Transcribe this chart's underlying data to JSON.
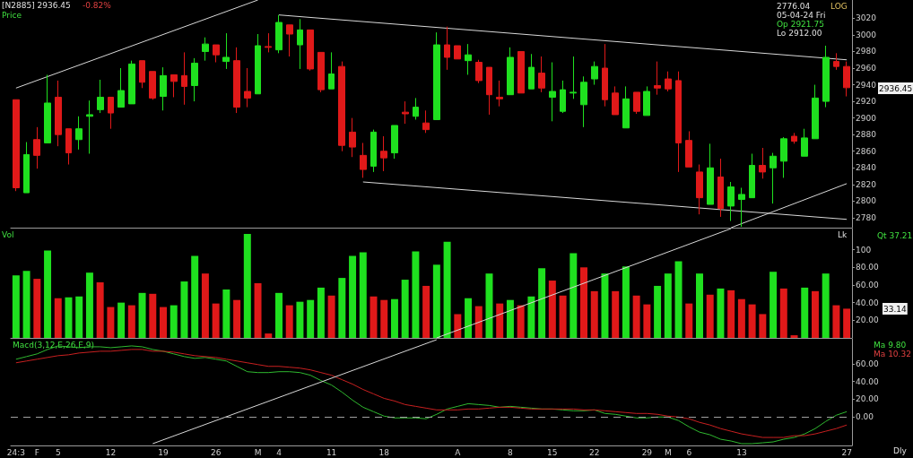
{
  "chart_data": [
    {
      "type": "candlestick",
      "title": "[N2885] 2936.45",
      "subtitle": "-0.82%",
      "categories": [
        null,
        null,
        null,
        null,
        null,
        null,
        null,
        null,
        null,
        null,
        null,
        null,
        null,
        null,
        null,
        null,
        null,
        null,
        null,
        null,
        null,
        null,
        null,
        null,
        null,
        null,
        null,
        null,
        null,
        null,
        null,
        null,
        null,
        null,
        null,
        null,
        null,
        null,
        null,
        null,
        null,
        null,
        null,
        null,
        null,
        null,
        null,
        null,
        null,
        null,
        null,
        null,
        null,
        null,
        null,
        null,
        null,
        null,
        null,
        null,
        null,
        null,
        null,
        null,
        null,
        null,
        null,
        null,
        null,
        null,
        null,
        null,
        null,
        null,
        null,
        null,
        null,
        null,
        null,
        null
      ],
      "ohlc": [
        [
          2922,
          2922,
          2812,
          2816
        ],
        [
          2810,
          2871,
          2810,
          2856
        ],
        [
          2874,
          2889,
          2839,
          2855
        ],
        [
          2870,
          2952,
          2870,
          2918
        ],
        [
          2925,
          2945,
          2866,
          2880
        ],
        [
          2887,
          2887,
          2844,
          2858
        ],
        [
          2874,
          2902,
          2862,
          2887
        ],
        [
          2902,
          2921,
          2857,
          2904
        ],
        [
          2910,
          2946,
          2906,
          2925
        ],
        [
          2925,
          2925,
          2887,
          2906
        ],
        [
          2913,
          2960,
          2913,
          2933
        ],
        [
          2917,
          2969,
          2917,
          2965
        ],
        [
          2969,
          2969,
          2936,
          2943
        ],
        [
          2956,
          2956,
          2922,
          2924
        ],
        [
          2926,
          2961,
          2909,
          2951
        ],
        [
          2952,
          2952,
          2925,
          2944
        ],
        [
          2951,
          2979,
          2916,
          2938
        ],
        [
          2939,
          2972,
          2920,
          2966
        ],
        [
          2980,
          2997,
          2969,
          2989
        ],
        [
          2988,
          2988,
          2967,
          2976
        ],
        [
          2968,
          3002,
          2959,
          2973
        ],
        [
          2969,
          2985,
          2906,
          2913
        ],
        [
          2932,
          2960,
          2913,
          2924
        ],
        [
          2929,
          3001,
          2929,
          2987
        ],
        [
          2986,
          3002,
          2979,
          2985
        ],
        [
          2982,
          3024,
          2978,
          3015
        ],
        [
          3012,
          3012,
          2974,
          3001
        ],
        [
          2988,
          3019,
          2959,
          3006
        ],
        [
          3006,
          3006,
          2957,
          2959
        ],
        [
          2979,
          2979,
          2931,
          2934
        ],
        [
          2935,
          2979,
          2935,
          2953
        ],
        [
          2962,
          2968,
          2860,
          2867
        ],
        [
          2883,
          2900,
          2853,
          2865
        ],
        [
          2855,
          2870,
          2828,
          2838
        ],
        [
          2842,
          2886,
          2835,
          2883
        ],
        [
          2860,
          2878,
          2836,
          2852
        ],
        [
          2858,
          2891,
          2851,
          2891
        ],
        [
          2907,
          2920,
          2893,
          2905
        ],
        [
          2902,
          2924,
          2898,
          2913
        ],
        [
          2894,
          2909,
          2882,
          2886
        ],
        [
          2898,
          3003,
          2898,
          2988
        ],
        [
          2988,
          3010,
          2958,
          2973
        ],
        [
          2987,
          2987,
          2971,
          2971
        ],
        [
          2969,
          2989,
          2952,
          2976
        ],
        [
          2967,
          2970,
          2942,
          2945
        ],
        [
          2961,
          2961,
          2904,
          2928
        ],
        [
          2925,
          2945,
          2914,
          2923
        ],
        [
          2928,
          2985,
          2928,
          2973
        ],
        [
          2980,
          2980,
          2930,
          2930
        ],
        [
          2935,
          2977,
          2935,
          2961
        ],
        [
          2954,
          2974,
          2931,
          2936
        ],
        [
          2925,
          2967,
          2896,
          2932
        ],
        [
          2908,
          2945,
          2906,
          2934
        ],
        [
          2930,
          2974,
          2923,
          2931
        ],
        [
          2916,
          2950,
          2889,
          2943
        ],
        [
          2947,
          2968,
          2940,
          2962
        ],
        [
          2960,
          2989,
          2914,
          2922
        ],
        [
          2930,
          2938,
          2904,
          2904
        ],
        [
          2888,
          2938,
          2888,
          2923
        ],
        [
          2931,
          2931,
          2905,
          2908
        ],
        [
          2903,
          2938,
          2903,
          2932
        ],
        [
          2939,
          2968,
          2928,
          2936
        ],
        [
          2947,
          2956,
          2932,
          2935
        ],
        [
          2945,
          2956,
          2835,
          2870
        ],
        [
          2873,
          2884,
          2841,
          2841
        ],
        [
          2835,
          2844,
          2784,
          2804
        ],
        [
          2796,
          2869,
          2796,
          2840
        ],
        [
          2829,
          2851,
          2781,
          2791
        ],
        [
          2794,
          2823,
          2776,
          2817
        ],
        [
          2802,
          2816,
          2769,
          2808
        ],
        [
          2804,
          2857,
          2804,
          2843
        ],
        [
          2843,
          2864,
          2827,
          2835
        ],
        [
          2840,
          2858,
          2797,
          2854
        ],
        [
          2848,
          2877,
          2828,
          2875
        ],
        [
          2878,
          2882,
          2869,
          2872
        ],
        [
          2854,
          2887,
          2854,
          2876
        ],
        [
          2875,
          2940,
          2875,
          2924
        ],
        [
          2920,
          2987,
          2913,
          2973
        ],
        [
          2968,
          2978,
          2958,
          2962
        ],
        [
          2962,
          2968,
          2926,
          2936.45
        ]
      ],
      "colors": [
        "#e01919",
        "#1fe01f",
        "#e01919",
        "#1fe01f",
        "#e01919",
        "#e01919",
        "#1fe01f",
        "#1fe01f",
        "#1fe01f",
        "#e01919",
        "#1fe01f",
        "#1fe01f",
        "#e01919",
        "#e01919",
        "#1fe01f",
        "#e01919",
        "#e01919",
        "#1fe01f",
        "#1fe01f",
        "#e01919",
        "#1fe01f",
        "#e01919",
        "#e01919",
        "#1fe01f",
        "#e01919",
        "#1fe01f",
        "#e01919",
        "#1fe01f",
        "#e01919",
        "#e01919",
        "#1fe01f",
        "#e01919",
        "#e01919",
        "#e01919",
        "#1fe01f",
        "#e01919",
        "#1fe01f",
        "#e01919",
        "#1fe01f",
        "#e01919",
        "#1fe01f",
        "#e01919",
        "#e01919",
        "#1fe01f",
        "#e01919",
        "#e01919",
        "#e01919",
        "#1fe01f",
        "#e01919",
        "#1fe01f",
        "#e01919",
        "#1fe01f",
        "#1fe01f",
        "#1fe01f",
        "#1fe01f",
        "#1fe01f",
        "#e01919",
        "#e01919",
        "#1fe01f",
        "#e01919",
        "#1fe01f",
        "#e01919",
        "#e01919",
        "#e01919",
        "#e01919",
        "#e01919",
        "#1fe01f",
        "#e01919",
        "#1fe01f",
        "#1fe01f",
        "#1fe01f",
        "#e01919",
        "#1fe01f",
        "#1fe01f",
        "#e01919",
        "#1fe01f",
        "#1fe01f",
        "#1fe01f",
        "#e01919",
        "#e01919"
      ],
      "series": [
        {
          "type": "line",
          "color": "#d8d8d8",
          "values": [
            2936,
            null,
            null,
            null,
            null,
            null,
            null,
            null,
            null,
            null,
            null,
            null,
            null,
            null,
            null,
            null,
            null,
            null,
            null,
            null,
            null,
            null,
            null,
            3042,
            null,
            null,
            null,
            null,
            null,
            null,
            null,
            null,
            null,
            null,
            null,
            null,
            null,
            null,
            null,
            null,
            null,
            null,
            null,
            null,
            null,
            null,
            null,
            null,
            null,
            null,
            null,
            null,
            null,
            null,
            null,
            null,
            null,
            null,
            null,
            null,
            null,
            null,
            null,
            null,
            null,
            null,
            null,
            null,
            null,
            null,
            null,
            null,
            null,
            null,
            null,
            null,
            null,
            null,
            null,
            null
          ]
        },
        {
          "type": "line",
          "color": "#d8d8d8",
          "values": [
            null,
            null,
            null,
            null,
            null,
            null,
            null,
            null,
            null,
            null,
            null,
            null,
            null,
            null,
            null,
            null,
            null,
            null,
            null,
            null,
            null,
            null,
            null,
            null,
            null,
            3024,
            null,
            null,
            null,
            null,
            null,
            null,
            null,
            null,
            null,
            null,
            null,
            null,
            null,
            null,
            null,
            null,
            null,
            null,
            null,
            null,
            null,
            null,
            null,
            null,
            null,
            null,
            null,
            null,
            null,
            null,
            null,
            null,
            null,
            null,
            null,
            null,
            null,
            null,
            null,
            null,
            null,
            null,
            null,
            null,
            null,
            null,
            null,
            null,
            null,
            null,
            null,
            null,
            null,
            2970
          ]
        },
        {
          "type": "line",
          "color": "#d8d8d8",
          "values": [
            null,
            null,
            null,
            null,
            null,
            null,
            null,
            null,
            null,
            null,
            null,
            null,
            null,
            null,
            null,
            null,
            null,
            null,
            null,
            null,
            null,
            null,
            null,
            null,
            null,
            null,
            null,
            null,
            null,
            null,
            null,
            null,
            null,
            2823,
            null,
            null,
            null,
            null,
            null,
            null,
            null,
            null,
            null,
            null,
            null,
            null,
            null,
            null,
            null,
            null,
            null,
            null,
            null,
            null,
            null,
            null,
            null,
            null,
            null,
            null,
            null,
            null,
            null,
            null,
            null,
            null,
            null,
            null,
            null,
            null,
            null,
            null,
            null,
            null,
            null,
            null,
            null,
            null,
            null,
            2778
          ]
        },
        {
          "type": "line",
          "color": "#d8d8d8",
          "values": [
            null,
            null,
            null,
            null,
            null,
            null,
            null,
            null,
            null,
            null,
            null,
            null,
            null,
            null,
            null,
            null,
            null,
            null,
            null,
            null,
            null,
            null,
            null,
            null,
            null,
            null,
            null,
            null,
            null,
            null,
            null,
            null,
            null,
            null,
            null,
            null,
            null,
            null,
            null,
            null,
            null,
            null,
            null,
            null,
            null,
            null,
            null,
            null,
            null,
            null,
            null,
            null,
            null,
            null,
            null,
            null,
            null,
            null,
            null,
            null,
            null,
            null,
            null,
            null,
            null,
            null,
            null,
            null,
            2768,
            null,
            null,
            null,
            null,
            null,
            null,
            null,
            null,
            null,
            null,
            2821
          ]
        }
      ],
      "ylim": [
        2768,
        3042
      ],
      "yticks": [
        2780,
        2800,
        2820,
        2840,
        2860,
        2880,
        2900,
        2920,
        2940,
        2960,
        2980,
        3000,
        3020
      ],
      "tick_labels": "y",
      "annotations": [
        "Price",
        "LOG",
        "2776.04",
        "05-04-24 Fri",
        "Op 2921.75",
        "Lo 2912.00",
        "2936.45"
      ]
    },
    {
      "type": "bar",
      "categories": [
        null,
        null,
        null,
        null,
        null,
        null,
        null,
        null,
        null,
        null,
        null,
        null,
        null,
        null,
        null,
        null,
        null,
        null,
        null,
        null,
        null,
        null,
        null,
        null,
        null,
        null,
        null,
        null,
        null,
        null,
        null,
        null,
        null,
        null,
        null,
        null,
        null,
        null,
        null,
        null,
        null,
        null,
        null,
        null,
        null,
        null,
        null,
        null,
        null,
        null,
        null,
        null,
        null,
        null,
        null,
        null,
        null,
        null,
        null,
        null,
        null,
        null,
        null,
        null,
        null,
        null,
        null,
        null,
        null,
        null,
        null,
        null,
        null,
        null,
        null,
        null,
        null,
        null,
        null,
        null
      ],
      "values": [
        71,
        76,
        67,
        99,
        45,
        46,
        47,
        74,
        63,
        35,
        40,
        37,
        51,
        50,
        35,
        37,
        64,
        93,
        73,
        39,
        55,
        43,
        118,
        62,
        5,
        51,
        37,
        41,
        43,
        57,
        48,
        68,
        93,
        97,
        47,
        43,
        44,
        66,
        98,
        59,
        83,
        109,
        27,
        45,
        36,
        73,
        39,
        43,
        37,
        47,
        79,
        65,
        48,
        96,
        80,
        53,
        73,
        53,
        81,
        48,
        38,
        59,
        73,
        87,
        39,
        73,
        49,
        56,
        54,
        44,
        38,
        27,
        75,
        56,
        3,
        57,
        53,
        73,
        37,
        33.14
      ],
      "colors": [
        "#1fe01f",
        "#1fe01f",
        "#e01919",
        "#1fe01f",
        "#e01919",
        "#1fe01f",
        "#1fe01f",
        "#1fe01f",
        "#e01919",
        "#e01919",
        "#1fe01f",
        "#e01919",
        "#1fe01f",
        "#e01919",
        "#e01919",
        "#1fe01f",
        "#1fe01f",
        "#1fe01f",
        "#e01919",
        "#e01919",
        "#1fe01f",
        "#e01919",
        "#1fe01f",
        "#e01919",
        "#e01919",
        "#1fe01f",
        "#e01919",
        "#1fe01f",
        "#1fe01f",
        "#1fe01f",
        "#e01919",
        "#1fe01f",
        "#1fe01f",
        "#1fe01f",
        "#e01919",
        "#e01919",
        "#1fe01f",
        "#1fe01f",
        "#1fe01f",
        "#e01919",
        "#1fe01f",
        "#1fe01f",
        "#e01919",
        "#1fe01f",
        "#e01919",
        "#1fe01f",
        "#e01919",
        "#1fe01f",
        "#e01919",
        "#1fe01f",
        "#1fe01f",
        "#e01919",
        "#e01919",
        "#1fe01f",
        "#e01919",
        "#e01919",
        "#1fe01f",
        "#e01919",
        "#1fe01f",
        "#e01919",
        "#e01919",
        "#1fe01f",
        "#1fe01f",
        "#1fe01f",
        "#e01919",
        "#1fe01f",
        "#e01919",
        "#1fe01f",
        "#e01919",
        "#e01919",
        "#e01919",
        "#e01919",
        "#1fe01f",
        "#e01919",
        "#e01919",
        "#1fe01f",
        "#e01919",
        "#1fe01f",
        "#e01919",
        "#e01919"
      ],
      "series": [
        {
          "type": "line",
          "color": "#d8d8d8",
          "values": [
            null,
            null,
            null,
            null,
            null,
            null,
            null,
            null,
            null,
            null,
            null,
            null,
            null,
            null,
            null,
            null,
            null,
            null,
            null,
            null,
            null,
            null,
            null,
            null,
            null,
            null,
            null,
            null,
            null,
            null,
            null,
            null,
            null,
            null,
            null,
            null,
            null,
            null,
            null,
            null,
            0,
            null,
            null,
            null,
            null,
            null,
            null,
            null,
            null,
            null,
            null,
            null,
            null,
            null,
            null,
            null,
            null,
            null,
            null,
            null,
            null,
            null,
            null,
            null,
            null,
            null,
            null,
            null,
            124,
            null,
            null,
            null,
            null,
            null,
            null,
            null,
            null,
            null,
            null,
            null
          ]
        }
      ],
      "ylim": [
        0,
        124
      ],
      "yticks": [
        {
          "value": 20,
          "label": "20.00"
        },
        {
          "value": 40,
          "label": "40.00"
        },
        {
          "value": 60,
          "label": "60.00"
        },
        {
          "value": 80,
          "label": "80.00"
        },
        100
      ],
      "tick_labels": "y",
      "annotations": [
        "Vol",
        "Lk",
        "Qt 37.21",
        "33.14"
      ]
    },
    {
      "type": "line",
      "marker": "none",
      "categories": [
        "24:3",
        null,
        "F",
        null,
        "5",
        null,
        null,
        null,
        null,
        "12",
        null,
        null,
        null,
        null,
        "19",
        null,
        null,
        null,
        null,
        "26",
        null,
        null,
        null,
        "M",
        null,
        "4",
        null,
        null,
        null,
        null,
        "11",
        null,
        null,
        null,
        null,
        "18",
        null,
        null,
        null,
        null,
        null,
        null,
        "A",
        null,
        null,
        null,
        null,
        "8",
        null,
        null,
        null,
        "15",
        null,
        null,
        null,
        "22",
        null,
        null,
        null,
        null,
        "29",
        null,
        "M",
        null,
        "6",
        null,
        null,
        null,
        null,
        "13",
        null,
        null,
        null,
        null,
        null,
        null,
        null,
        null,
        null,
        "27"
      ],
      "series": [
        {
          "color": "#2fb82f",
          "values": [
            65,
            68,
            71,
            76,
            80,
            79,
            78,
            79,
            79,
            78,
            79,
            80,
            79,
            76,
            74,
            71,
            68,
            66,
            67,
            65,
            63,
            57,
            51,
            50,
            50,
            51,
            51,
            50,
            47,
            41,
            36,
            28,
            19,
            11,
            6,
            1,
            -1,
            -1,
            -1,
            -2,
            3,
            9,
            12,
            15,
            14,
            13,
            11,
            12,
            11,
            10,
            9,
            9,
            8,
            7,
            7,
            8,
            4,
            3,
            1,
            -1,
            -1,
            0,
            0,
            -4,
            -11,
            -17,
            -20,
            -25,
            -27,
            -30,
            -30,
            -29,
            -28,
            -25,
            -23,
            -19,
            -13,
            -5,
            2,
            6
          ]
        },
        {
          "color": "#c82020",
          "values": [
            61,
            63,
            65,
            67,
            69,
            70,
            72,
            73,
            74,
            74,
            75,
            76,
            76,
            74,
            74,
            73,
            71,
            69,
            68,
            67,
            65,
            63,
            61,
            59,
            57,
            57,
            56,
            55,
            53,
            50,
            47,
            42,
            37,
            31,
            26,
            21,
            18,
            14,
            12,
            10,
            8,
            8,
            8,
            9,
            9,
            10,
            11,
            11,
            10,
            9,
            9,
            9,
            9,
            9,
            8,
            8,
            7,
            6,
            5,
            4,
            4,
            3,
            1,
            0,
            -2,
            -6,
            -9,
            -13,
            -16,
            -19,
            -21,
            -23,
            -23,
            -23,
            -21,
            -21,
            -19,
            -16,
            -13,
            -9
          ]
        },
        {
          "color": "#d8d8d8",
          "values": [
            null,
            null,
            null,
            null,
            null,
            null,
            null,
            null,
            null,
            null,
            null,
            null,
            null,
            -30,
            null,
            null,
            null,
            null,
            null,
            null,
            null,
            null,
            null,
            null,
            null,
            null,
            null,
            null,
            null,
            null,
            null,
            null,
            null,
            null,
            null,
            null,
            null,
            null,
            null,
            null,
            87,
            null,
            null,
            null,
            null,
            null,
            null,
            null,
            null,
            null,
            null,
            null,
            null,
            null,
            null,
            null,
            null,
            null,
            null,
            null,
            null,
            null,
            null,
            null,
            null,
            null,
            null,
            null,
            null,
            null,
            null,
            null,
            null,
            null,
            null,
            null,
            null,
            null,
            null,
            null
          ]
        }
      ],
      "ylim": [
        -32,
        88
      ],
      "yticks": [
        {
          "value": 0,
          "label": "0.00"
        },
        {
          "value": 20,
          "label": "20.00"
        },
        {
          "value": 40,
          "label": "40.00"
        },
        {
          "value": 60,
          "label": "60.00"
        }
      ],
      "ref_lines": [
        {
          "axis": "y",
          "value": 0,
          "color": "#a0a0a0",
          "line_style": "dashed"
        }
      ],
      "annotations": [
        "Macd(3,12,E,26,E,9)",
        "Ma 9.80",
        "Ma 10.32",
        "Dly"
      ]
    }
  ]
}
